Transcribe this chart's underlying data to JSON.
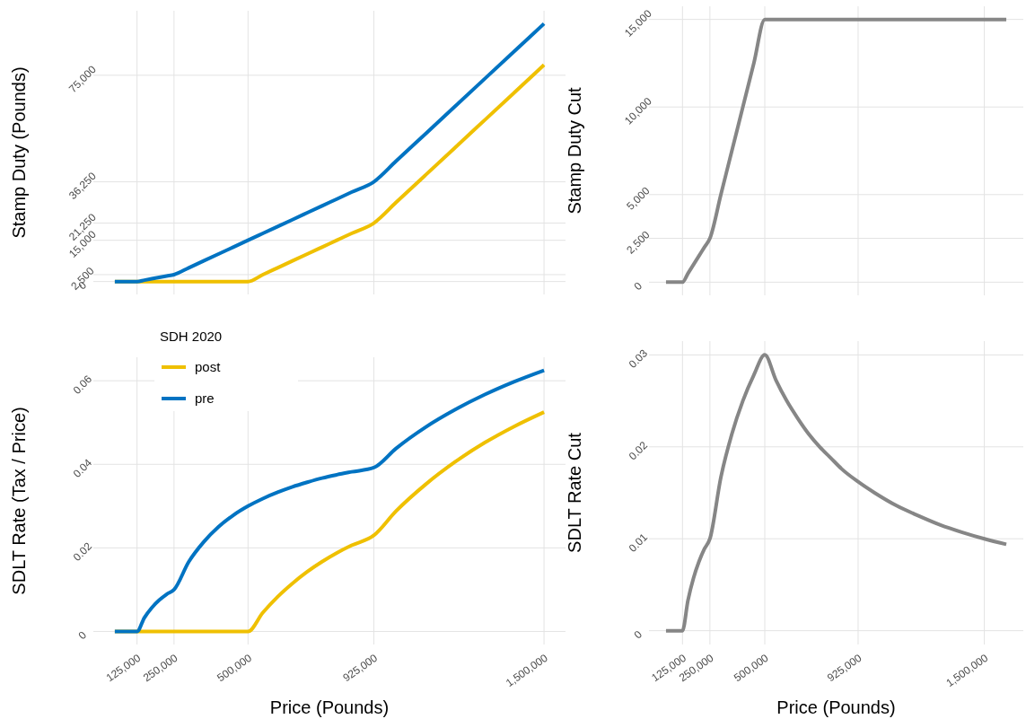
{
  "chart_data": [
    {
      "type": "line",
      "ylabel": "Stamp Duty (Pounds)",
      "x": [
        50000,
        125000,
        150000,
        175000,
        200000,
        225000,
        250000,
        300000,
        350000,
        400000,
        450000,
        500000,
        550000,
        600000,
        650000,
        700000,
        750000,
        800000,
        850000,
        925000,
        1000000,
        1100000,
        1200000,
        1300000,
        1400000,
        1500000
      ],
      "series": [
        {
          "color": "#efc000",
          "values": [
            0,
            0,
            0,
            0,
            0,
            0,
            0,
            0,
            0,
            0,
            0,
            0,
            2500,
            5000,
            7500,
            10000,
            12500,
            15000,
            17500,
            21250,
            28750,
            38750,
            48750,
            58750,
            68750,
            78750
          ]
        },
        {
          "color": "#0073c2",
          "values": [
            0,
            0,
            500,
            1000,
            1500,
            2000,
            2500,
            5000,
            7500,
            10000,
            12500,
            15000,
            17500,
            20000,
            22500,
            25000,
            27500,
            30000,
            32500,
            36250,
            43750,
            53750,
            63750,
            73750,
            83750,
            93750
          ]
        }
      ],
      "xlim": [
        -22500,
        1572500
      ],
      "xticks": [
        {
          "value": 125000,
          "label": null
        },
        {
          "value": 250000,
          "label": null
        },
        {
          "value": 500000,
          "label": null
        },
        {
          "value": 925000,
          "label": null
        },
        {
          "value": 1500000,
          "label": null
        }
      ],
      "ylim": [
        -4687.5,
        98437.5
      ],
      "yticks": [
        0,
        {
          "value": 2500,
          "label": "2,500"
        },
        {
          "value": 15000,
          "label": "15,000"
        },
        {
          "value": 21250,
          "label": "21,250"
        },
        {
          "value": 36250,
          "label": "36,250"
        },
        {
          "value": 75000,
          "label": "75,000"
        }
      ],
      "grid": true,
      "tick_labels": "y"
    },
    {
      "type": "line",
      "ylabel": "Stamp Duty Cut",
      "x": [
        50000,
        125000,
        150000,
        175000,
        200000,
        225000,
        250000,
        300000,
        350000,
        400000,
        450000,
        500000,
        550000,
        600000,
        650000,
        700000,
        750000,
        800000,
        850000,
        925000,
        1000000,
        1100000,
        1200000,
        1300000,
        1400000,
        1500000,
        1600000
      ],
      "series": [
        {
          "color": "#868686",
          "values": [
            0,
            0,
            500,
            1000,
            1500,
            2000,
            2500,
            5000,
            7500,
            10000,
            12500,
            15000,
            15000,
            15000,
            15000,
            15000,
            15000,
            15000,
            15000,
            15000,
            15000,
            15000,
            15000,
            15000,
            15000,
            15000,
            15000
          ]
        }
      ],
      "xlim": [
        -27500,
        1677500
      ],
      "xticks": [
        {
          "value": 125000,
          "label": null
        },
        {
          "value": 250000,
          "label": null
        },
        {
          "value": 500000,
          "label": null
        },
        {
          "value": 925000,
          "label": null
        },
        {
          "value": 1500000,
          "label": null
        }
      ],
      "ylim": [
        -750,
        15750
      ],
      "yticks": [
        0,
        {
          "value": 2500,
          "label": "2,500"
        },
        {
          "value": 5000,
          "label": "5,000"
        },
        {
          "value": 10000,
          "label": "10,000"
        },
        {
          "value": 15000,
          "label": "15,000"
        }
      ],
      "grid": true,
      "tick_labels": "y"
    },
    {
      "type": "line",
      "ylabel": "SDLT Rate (Tax / Price)",
      "xlabel": "Price (Pounds)",
      "legend_title": "SDH 2020",
      "legend": "top left",
      "x": [
        50000,
        125000,
        150000,
        175000,
        200000,
        225000,
        250000,
        300000,
        350000,
        400000,
        450000,
        500000,
        550000,
        600000,
        650000,
        700000,
        750000,
        800000,
        850000,
        925000,
        1000000,
        1100000,
        1200000,
        1300000,
        1400000,
        1500000
      ],
      "series": [
        {
          "name": "post",
          "color": "#efc000",
          "values": [
            0,
            0,
            0,
            0,
            0,
            0,
            0,
            0,
            0,
            0,
            0,
            0,
            0.0045,
            0.0083,
            0.0115,
            0.0143,
            0.0167,
            0.0188,
            0.0206,
            0.023,
            0.0288,
            0.0352,
            0.0406,
            0.0452,
            0.0491,
            0.0525
          ]
        },
        {
          "name": "pre",
          "color": "#0073c2",
          "values": [
            0,
            0,
            0.0033,
            0.0057,
            0.0075,
            0.0089,
            0.01,
            0.0167,
            0.0214,
            0.025,
            0.0278,
            0.03,
            0.0318,
            0.0333,
            0.0346,
            0.0357,
            0.0367,
            0.0375,
            0.0382,
            0.0392,
            0.0438,
            0.0489,
            0.0531,
            0.0567,
            0.0598,
            0.0625
          ]
        }
      ],
      "xlim": [
        -22500,
        1572500
      ],
      "xticks": [
        {
          "value": 125000,
          "label": "125,000"
        },
        {
          "value": 250000,
          "label": "250,000"
        },
        {
          "value": 500000,
          "label": "500,000"
        },
        {
          "value": 925000,
          "label": "925,000"
        },
        {
          "value": 1500000,
          "label": "1,500,000"
        }
      ],
      "ylim": [
        -0.003125,
        0.065625
      ],
      "yticks": [
        0,
        0.02,
        0.04,
        0.06
      ],
      "grid": true
    },
    {
      "type": "line",
      "ylabel": "SDLT Rate Cut",
      "xlabel": "Price (Pounds)",
      "x": [
        50000,
        125000,
        150000,
        175000,
        200000,
        225000,
        250000,
        300000,
        350000,
        400000,
        450000,
        500000,
        550000,
        600000,
        650000,
        700000,
        750000,
        800000,
        850000,
        925000,
        1000000,
        1100000,
        1200000,
        1300000,
        1400000,
        1500000,
        1600000
      ],
      "series": [
        {
          "color": "#868686",
          "values": [
            0,
            0,
            0.0033,
            0.0057,
            0.0075,
            0.0089,
            0.01,
            0.0167,
            0.0214,
            0.025,
            0.0278,
            0.03,
            0.0273,
            0.025,
            0.0231,
            0.0214,
            0.02,
            0.0188,
            0.0176,
            0.0162,
            0.015,
            0.0136,
            0.0125,
            0.0115,
            0.0107,
            0.01,
            0.0094
          ]
        }
      ],
      "xlim": [
        -27500,
        1677500
      ],
      "xticks": [
        {
          "value": 125000,
          "label": "125,000"
        },
        {
          "value": 250000,
          "label": "250,000"
        },
        {
          "value": 500000,
          "label": "500,000"
        },
        {
          "value": 925000,
          "label": "925,000"
        },
        {
          "value": 1500000,
          "label": "1,500,000"
        }
      ],
      "ylim": [
        -0.0015,
        0.0315
      ],
      "yticks": [
        0,
        0.01,
        0.02,
        0.03
      ],
      "grid": true
    }
  ]
}
